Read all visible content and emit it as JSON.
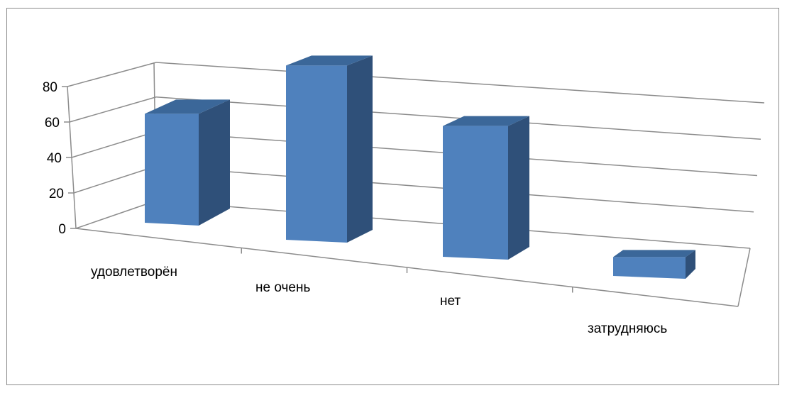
{
  "chart_data": {
    "type": "bar",
    "categories": [
      "удовлетворён",
      "не очень",
      "нет",
      "затрудняюсь"
    ],
    "values": [
      36,
      57,
      43,
      7
    ],
    "yticks": [
      0,
      20,
      40,
      60,
      80
    ],
    "ylim": [
      0,
      80
    ],
    "title": "",
    "xlabel": "",
    "ylabel": "",
    "grid": true,
    "legend": "none",
    "colors": {
      "bar_front": "#4f81bd",
      "bar_top": "#3b6799",
      "bar_side": "#2f5079",
      "axis": "#8c8c8c",
      "grid": "#8c8c8c"
    }
  }
}
